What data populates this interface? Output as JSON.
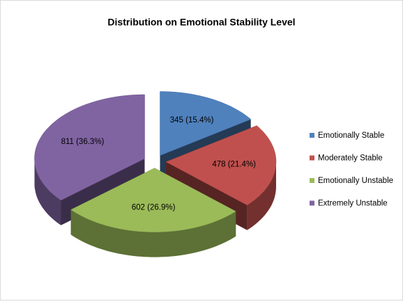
{
  "chart_data": {
    "type": "pie",
    "title": "Distribution on Emotional Stability Level",
    "categories": [
      "Emotionally Stable",
      "Moderately Stable",
      "Emotionally Unstable",
      "Extremely Unstable"
    ],
    "values": [
      345,
      478,
      602,
      811
    ],
    "value_labels": [
      "345 (15.4%)",
      "478 (21.4%)",
      "602 (26.9%)",
      "811 (36.3%)"
    ],
    "colors": [
      "#4f81bd",
      "#c0504d",
      "#9bbb59",
      "#8064a2"
    ],
    "legend": "right"
  }
}
